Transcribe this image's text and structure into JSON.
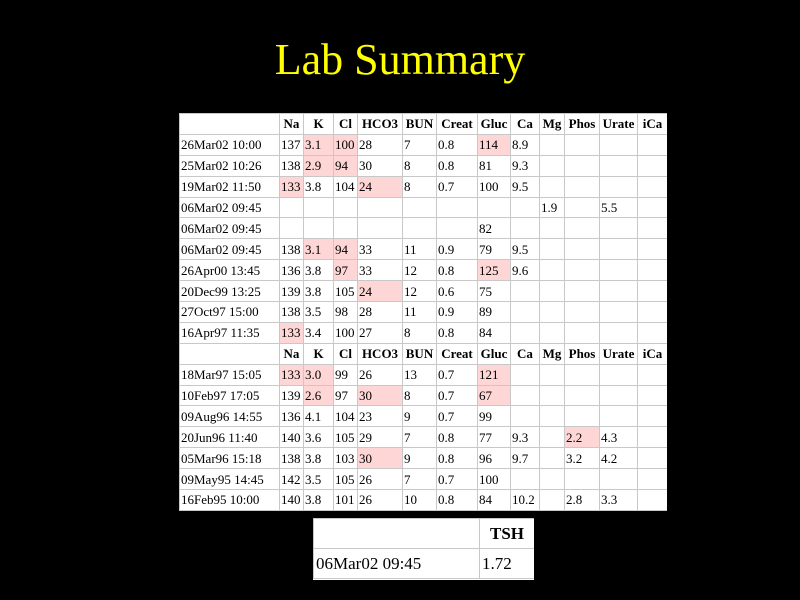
{
  "title": "Lab Summary",
  "lab_table": {
    "columns": [
      "",
      "Na",
      "K",
      "Cl",
      "HCO3",
      "BUN",
      "Creat",
      "Gluc",
      "Ca",
      "Mg",
      "Phos",
      "Urate",
      "iCa"
    ],
    "highlight_color": "#ffd6d6",
    "rows": [
      {
        "type": "data",
        "cells": [
          "26Mar02 10:00",
          "137",
          "3.1",
          "100",
          "28",
          "7",
          "0.8",
          "114",
          "8.9",
          "",
          "",
          "",
          ""
        ],
        "hl": [
          2,
          3,
          7
        ]
      },
      {
        "type": "data",
        "cells": [
          "25Mar02 10:26",
          "138",
          "2.9",
          "94",
          "30",
          "8",
          "0.8",
          "81",
          "9.3",
          "",
          "",
          "",
          ""
        ],
        "hl": [
          2,
          3
        ]
      },
      {
        "type": "data",
        "cells": [
          "19Mar02 11:50",
          "133",
          "3.8",
          "104",
          "24",
          "8",
          "0.7",
          "100",
          "9.5",
          "",
          "",
          "",
          ""
        ],
        "hl": [
          1,
          4
        ]
      },
      {
        "type": "data",
        "cells": [
          "06Mar02 09:45",
          "",
          "",
          "",
          "",
          "",
          "",
          "",
          "",
          "1.9",
          "",
          "5.5",
          ""
        ],
        "hl": []
      },
      {
        "type": "data",
        "cells": [
          "06Mar02 09:45",
          "",
          "",
          "",
          "",
          "",
          "",
          "82",
          "",
          "",
          "",
          "",
          ""
        ],
        "hl": []
      },
      {
        "type": "data",
        "cells": [
          "06Mar02 09:45",
          "138",
          "3.1",
          "94",
          "33",
          "11",
          "0.9",
          "79",
          "9.5",
          "",
          "",
          "",
          ""
        ],
        "hl": [
          2,
          3
        ]
      },
      {
        "type": "data",
        "cells": [
          "26Apr00 13:45",
          "136",
          "3.8",
          "97",
          "33",
          "12",
          "0.8",
          "125",
          "9.6",
          "",
          "",
          "",
          ""
        ],
        "hl": [
          3,
          7
        ]
      },
      {
        "type": "data",
        "cells": [
          "20Dec99 13:25",
          "139",
          "3.8",
          "105",
          "24",
          "12",
          "0.6",
          "75",
          "",
          "",
          "",
          "",
          ""
        ],
        "hl": [
          4
        ]
      },
      {
        "type": "data",
        "cells": [
          "27Oct97 15:00",
          "138",
          "3.5",
          "98",
          "28",
          "11",
          "0.9",
          "89",
          "",
          "",
          "",
          "",
          ""
        ],
        "hl": []
      },
      {
        "type": "data",
        "cells": [
          "16Apr97 11:35",
          "133",
          "3.4",
          "100",
          "27",
          "8",
          "0.8",
          "84",
          "",
          "",
          "",
          "",
          ""
        ],
        "hl": [
          1
        ]
      },
      {
        "type": "header",
        "cells": [
          "",
          "Na",
          "K",
          "Cl",
          "HCO3",
          "BUN",
          "Creat",
          "Gluc",
          "Ca",
          "Mg",
          "Phos",
          "Urate",
          "iCa"
        ],
        "hl": []
      },
      {
        "type": "data",
        "cells": [
          "18Mar97 15:05",
          "133",
          "3.0",
          "99",
          "26",
          "13",
          "0.7",
          "121",
          "",
          "",
          "",
          "",
          ""
        ],
        "hl": [
          1,
          2,
          7
        ]
      },
      {
        "type": "data",
        "cells": [
          "10Feb97 17:05",
          "139",
          "2.6",
          "97",
          "30",
          "8",
          "0.7",
          "67",
          "",
          "",
          "",
          "",
          ""
        ],
        "hl": [
          2,
          4,
          7
        ]
      },
      {
        "type": "data",
        "cells": [
          "09Aug96 14:55",
          "136",
          "4.1",
          "104",
          "23",
          "9",
          "0.7",
          "99",
          "",
          "",
          "",
          "",
          ""
        ],
        "hl": []
      },
      {
        "type": "data",
        "cells": [
          "20Jun96 11:40",
          "140",
          "3.6",
          "105",
          "29",
          "7",
          "0.8",
          "77",
          "9.3",
          "",
          "2.2",
          "4.3",
          ""
        ],
        "hl": [
          10
        ]
      },
      {
        "type": "data",
        "cells": [
          "05Mar96 15:18",
          "138",
          "3.8",
          "103",
          "30",
          "9",
          "0.8",
          "96",
          "9.7",
          "",
          "3.2",
          "4.2",
          ""
        ],
        "hl": [
          4
        ]
      },
      {
        "type": "data",
        "cells": [
          "09May95 14:45",
          "142",
          "3.5",
          "105",
          "26",
          "7",
          "0.7",
          "100",
          "",
          "",
          "",
          "",
          ""
        ],
        "hl": []
      },
      {
        "type": "data",
        "cells": [
          "16Feb95 10:00",
          "140",
          "3.8",
          "101",
          "26",
          "10",
          "0.8",
          "84",
          "10.2",
          "",
          "2.8",
          "3.3",
          ""
        ],
        "hl": []
      }
    ]
  },
  "tsh_table": {
    "header": [
      "",
      "TSH"
    ],
    "rows": [
      [
        "06Mar02 09:45",
        "1.72"
      ]
    ]
  }
}
